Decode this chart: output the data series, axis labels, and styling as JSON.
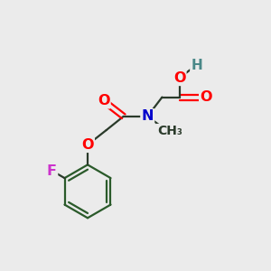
{
  "bg_color": "#ebebeb",
  "bond_color": "#2a3a2a",
  "ring_color": "#2a5a2a",
  "atom_colors": {
    "O": "#ff0000",
    "N": "#0000cc",
    "F": "#cc33cc",
    "H": "#4a8888",
    "C": "#2a3a2a"
  },
  "figsize": [
    3.0,
    3.0
  ],
  "dpi": 100,
  "bond_lw": 1.6,
  "font_size": 11.5
}
